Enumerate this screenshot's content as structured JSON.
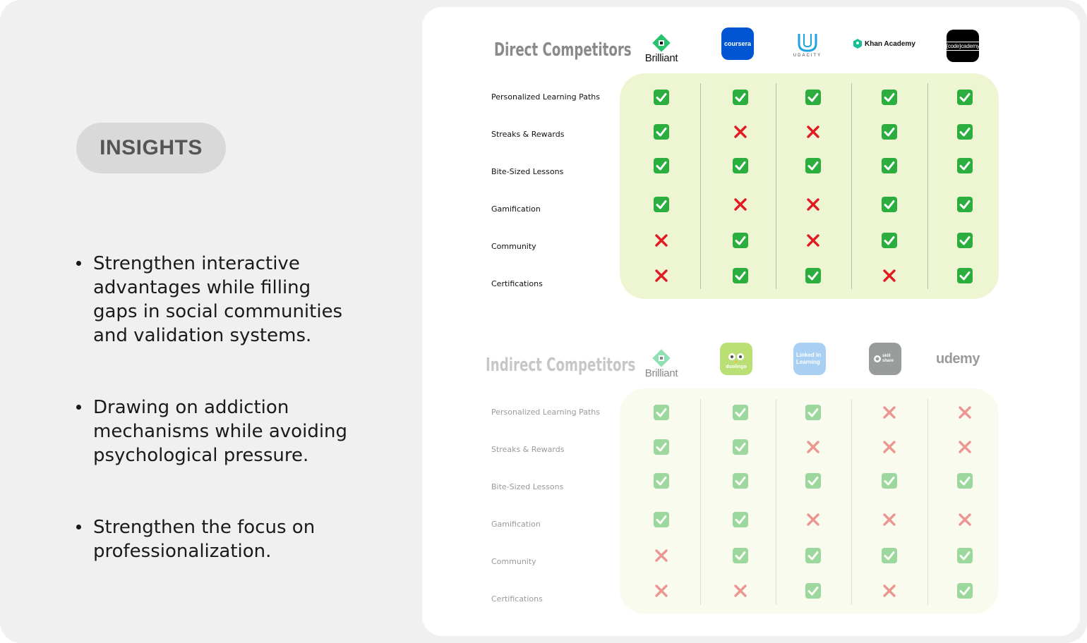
{
  "insights": {
    "heading": "INSIGHTS",
    "points": [
      "Strengthen interactive advantages while filling gaps in social communities and validation systems.",
      "Drawing on addiction mechanisms while avoiding psychological pressure.",
      "Strengthen the focus on professionalization."
    ]
  },
  "features": [
    "Personalized Learning Paths",
    "Streaks & Rewards",
    "Bite-Sized Lessons",
    "Gamification",
    "Community",
    "Certifications"
  ],
  "direct": {
    "title": "Direct Competitors",
    "brands": [
      {
        "name": "Brilliant",
        "icon": "brilliant-logo"
      },
      {
        "name": "coursera",
        "icon": "coursera-logo"
      },
      {
        "name": "UDACITY",
        "icon": "udacity-logo"
      },
      {
        "name": "Khan Academy",
        "icon": "khan-academy-logo"
      },
      {
        "name": "{code}cademy",
        "icon": "codecademy-logo"
      }
    ],
    "matrix": [
      [
        true,
        true,
        true,
        true,
        true
      ],
      [
        true,
        false,
        false,
        true,
        true
      ],
      [
        true,
        true,
        true,
        true,
        true
      ],
      [
        true,
        false,
        false,
        true,
        true
      ],
      [
        false,
        true,
        false,
        true,
        true
      ],
      [
        false,
        true,
        true,
        false,
        true
      ]
    ]
  },
  "indirect": {
    "title": "Indirect Competitors",
    "brands": [
      {
        "name": "Brilliant",
        "icon": "brilliant-logo"
      },
      {
        "name": "duolingo",
        "icon": "duolingo-logo"
      },
      {
        "name": "Linked in Learning",
        "icon": "linkedin-learning-logo"
      },
      {
        "name": "skill share",
        "icon": "skillshare-logo"
      },
      {
        "name": "udemy",
        "icon": "udemy-logo"
      }
    ],
    "matrix": [
      [
        true,
        true,
        true,
        false,
        false
      ],
      [
        true,
        true,
        false,
        false,
        false
      ],
      [
        true,
        true,
        true,
        true,
        true
      ],
      [
        true,
        true,
        false,
        false,
        false
      ],
      [
        false,
        true,
        true,
        true,
        true
      ],
      [
        false,
        false,
        true,
        false,
        true
      ]
    ]
  },
  "colors": {
    "check": "#2cae3e",
    "cross": "#e01b22",
    "direct_panel": "#eef5d2",
    "indirect_panel": "#f9fbee",
    "coursera": "#0056d2",
    "duolingo": "#b9df75",
    "linkedin": "#a9cff2",
    "skillshare": "#989c9a",
    "khan": "#14bf96",
    "brilliant": "#28c46c"
  }
}
